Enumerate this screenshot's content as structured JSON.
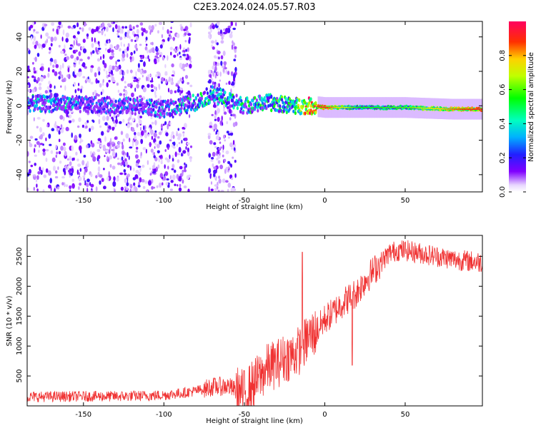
{
  "title": "C2E3.2024.024.05.57.R03",
  "chart_data": [
    {
      "type": "heatmap",
      "title": "C2E3.2024.024.05.57.R03",
      "xlabel": "Height of straight line (km)",
      "ylabel": "Frequency (Hz)",
      "xlim": [
        -185,
        98
      ],
      "ylim": [
        -50,
        49
      ],
      "xticks": [
        -150,
        -100,
        -50,
        0,
        50
      ],
      "yticks": [
        -40,
        -20,
        0,
        20,
        40
      ],
      "colorbar": {
        "label": "Normalized spectral amplitude",
        "range": [
          0,
          1
        ],
        "ticks": [
          0.0,
          0.2,
          0.4,
          0.6,
          0.8
        ]
      },
      "ridge": {
        "description_points": [
          {
            "x": -165,
            "freq": 1,
            "amp": 0.35
          },
          {
            "x": -120,
            "freq": 0,
            "amp": 0.25
          },
          {
            "x": -100,
            "freq": -2,
            "amp": 0.35
          },
          {
            "x": -80,
            "freq": 2,
            "amp": 0.45
          },
          {
            "x": -70,
            "freq": 7,
            "amp": 0.5
          },
          {
            "x": -50,
            "freq": 0,
            "amp": 0.45
          },
          {
            "x": -35,
            "freq": 2,
            "amp": 0.5
          },
          {
            "x": -20,
            "freq": 0,
            "amp": 0.55
          },
          {
            "x": -10,
            "freq": 0,
            "amp": 0.95
          },
          {
            "x": 0,
            "freq": -1,
            "amp": 0.85
          },
          {
            "x": 20,
            "freq": -1,
            "amp": 0.5
          },
          {
            "x": 50,
            "freq": -1,
            "amp": 0.55
          },
          {
            "x": 80,
            "freq": -2,
            "amp": 0.8
          },
          {
            "x": 98,
            "freq": -2,
            "amp": 0.9
          }
        ]
      }
    },
    {
      "type": "line",
      "xlabel": "Height of straight line (km)",
      "ylabel": "SNR (10 * v/v)",
      "xlim": [
        -185,
        98
      ],
      "ylim": [
        0,
        2850
      ],
      "xticks": [
        -150,
        -100,
        -50,
        0,
        50
      ],
      "yticks": [
        500,
        1000,
        1500,
        2000,
        2500
      ],
      "series": [
        {
          "name": "SNR",
          "color": "#f03232",
          "x": [
            -185,
            -170,
            -150,
            -130,
            -110,
            -100,
            -90,
            -80,
            -70,
            -60,
            -55,
            -50,
            -45,
            -40,
            -35,
            -30,
            -25,
            -20,
            -15,
            -10,
            -5,
            0,
            5,
            10,
            15,
            20,
            25,
            30,
            35,
            40,
            45,
            50,
            60,
            70,
            80,
            90,
            98
          ],
          "values": [
            150,
            155,
            160,
            160,
            170,
            180,
            210,
            250,
            320,
            330,
            250,
            200,
            350,
            500,
            650,
            700,
            800,
            850,
            950,
            1150,
            1250,
            1450,
            1550,
            1700,
            1800,
            1900,
            2100,
            2250,
            2400,
            2550,
            2600,
            2600,
            2550,
            2500,
            2450,
            2420,
            2400
          ]
        }
      ],
      "annotations": [
        {
          "x": -14,
          "value": 2570,
          "note": "spike"
        },
        {
          "x": 17,
          "value": 680,
          "note": "dip"
        }
      ]
    }
  ]
}
